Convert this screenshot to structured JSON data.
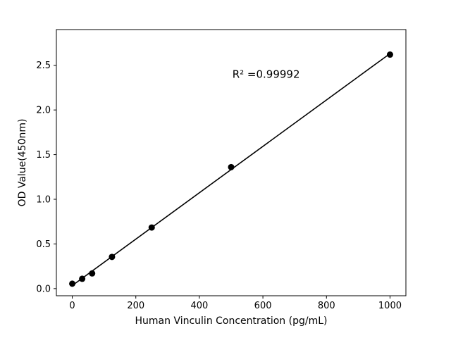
{
  "figure": {
    "background": "#ffffff"
  },
  "chart_data": {
    "type": "scatter",
    "title": "",
    "xlabel": "Human Vinculin Concentration (pg/mL)",
    "ylabel": "OD Value(450nm)",
    "x": [
      0,
      31.25,
      62.5,
      125,
      250,
      500,
      1000
    ],
    "y": [
      0.055,
      0.11,
      0.17,
      0.355,
      0.684,
      1.36,
      2.62
    ],
    "xlim": [
      -50,
      1050
    ],
    "ylim": [
      -0.08,
      2.9
    ],
    "xticks": [
      0,
      200,
      400,
      600,
      800,
      1000
    ],
    "xtick_labels": [
      "0",
      "200",
      "400",
      "600",
      "800",
      "1000"
    ],
    "yticks": [
      0,
      0.5,
      1.0,
      1.5,
      2.0,
      2.5
    ],
    "ytick_labels": [
      "0.0",
      "0.5",
      "1.0",
      "1.5",
      "2.0",
      "2.5"
    ],
    "annotation": {
      "text": "R² =0.99992",
      "x": 610,
      "y": 2.36
    },
    "fit_line": "linear",
    "marker": "circle",
    "marker_color": "#000000",
    "line_color": "#000000",
    "grid": false,
    "legend_position": "none"
  }
}
